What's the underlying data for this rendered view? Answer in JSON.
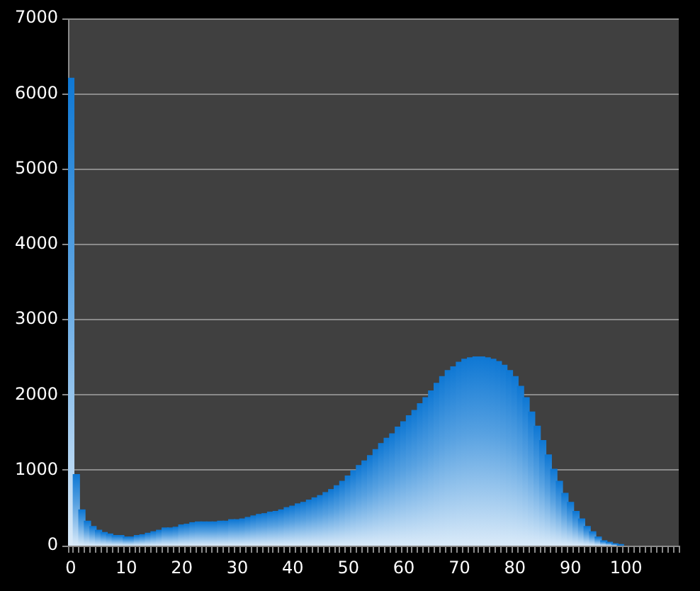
{
  "chart_data": {
    "type": "bar",
    "categories": [
      "0",
      null,
      null,
      null,
      null,
      null,
      null,
      null,
      null,
      null,
      "10",
      null,
      null,
      null,
      null,
      null,
      null,
      null,
      null,
      null,
      "20",
      null,
      null,
      null,
      null,
      null,
      null,
      null,
      null,
      null,
      "30",
      null,
      null,
      null,
      null,
      null,
      null,
      null,
      null,
      null,
      "40",
      null,
      null,
      null,
      null,
      null,
      null,
      null,
      null,
      null,
      "50",
      null,
      null,
      null,
      null,
      null,
      null,
      null,
      null,
      null,
      "60",
      null,
      null,
      null,
      null,
      null,
      null,
      null,
      null,
      null,
      "70",
      null,
      null,
      null,
      null,
      null,
      null,
      null,
      null,
      null,
      "80",
      null,
      null,
      null,
      null,
      null,
      null,
      null,
      null,
      null,
      "90",
      null,
      null,
      null,
      null,
      null,
      null,
      null,
      null,
      null,
      "100",
      null,
      null,
      null,
      null,
      null,
      null,
      null,
      null,
      null
    ],
    "values": [
      6200,
      940,
      470,
      320,
      250,
      200,
      170,
      150,
      130,
      130,
      110,
      110,
      130,
      140,
      160,
      180,
      200,
      230,
      230,
      240,
      270,
      280,
      300,
      310,
      310,
      310,
      310,
      320,
      320,
      340,
      340,
      350,
      370,
      390,
      410,
      420,
      440,
      450,
      470,
      500,
      520,
      550,
      570,
      600,
      630,
      660,
      700,
      740,
      790,
      850,
      920,
      990,
      1060,
      1120,
      1190,
      1270,
      1350,
      1420,
      1480,
      1570,
      1640,
      1720,
      1790,
      1880,
      1960,
      2050,
      2150,
      2240,
      2320,
      2370,
      2430,
      2470,
      2490,
      2500,
      2500,
      2490,
      2470,
      2440,
      2390,
      2320,
      2240,
      2110,
      1960,
      1770,
      1580,
      1390,
      1200,
      1010,
      850,
      690,
      570,
      450,
      350,
      250,
      180,
      110,
      60,
      40,
      20,
      10,
      null,
      null,
      null,
      null,
      null,
      null,
      null,
      null,
      null,
      null
    ],
    "color": "#0f78d4",
    "ylim": [
      0,
      7000
    ],
    "yticks": [
      0,
      1000,
      2000,
      3000,
      4000,
      5000,
      6000,
      7000
    ],
    "grid": "y"
  }
}
